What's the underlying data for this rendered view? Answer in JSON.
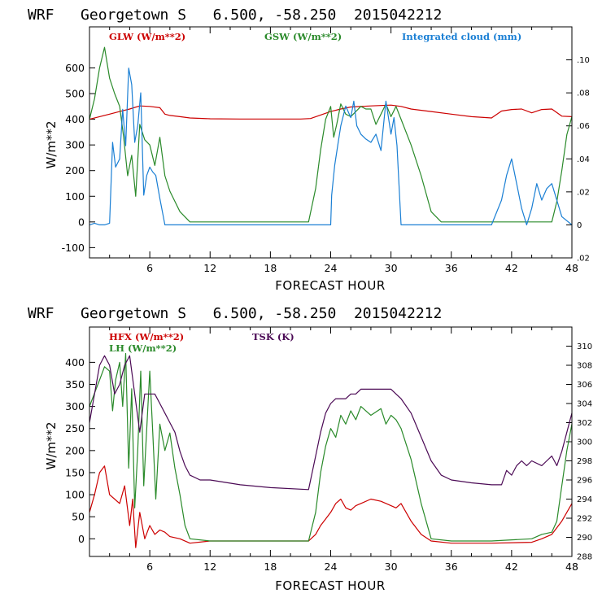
{
  "chart_data": [
    {
      "type": "line",
      "title": "WRF   Georgetown S   6.500, -58.250  2015042212",
      "xlabel": "FORECAST HOUR",
      "ylabel": "W/m**2",
      "xlim": [
        0,
        48
      ],
      "ylim": [
        -140,
        760
      ],
      "y2lim": [
        -0.02,
        0.12
      ],
      "xticks": [
        6,
        12,
        18,
        24,
        30,
        36,
        42,
        48
      ],
      "xtick_labels": [
        "6",
        "12",
        "18",
        "24",
        "30",
        "36",
        "42",
        "48"
      ],
      "yticks": [
        -100,
        0,
        100,
        200,
        300,
        400,
        500,
        600
      ],
      "ytick_labels": [
        "-100",
        "0",
        "100",
        "200",
        "300",
        "400",
        "500",
        "600"
      ],
      "y2ticks": [
        -0.02,
        0,
        0.02,
        0.04,
        0.06,
        0.08,
        0.1
      ],
      "y2tick_labels": [
        ".02",
        "0",
        ".02",
        ".04",
        ".06",
        ".08",
        ".10"
      ],
      "series": [
        {
          "name": "GLW (W/m**2)",
          "axis": "left",
          "color": "#cc0000",
          "x": [
            0,
            1,
            2,
            3,
            4,
            5,
            6,
            7,
            7.5,
            8,
            9,
            10,
            12,
            15,
            18,
            21,
            22,
            24,
            25,
            26,
            28,
            30,
            31,
            32,
            34,
            36,
            38,
            40,
            41,
            42,
            43,
            44,
            45,
            46,
            47,
            48
          ],
          "values": [
            400,
            410,
            420,
            430,
            440,
            452,
            450,
            445,
            420,
            415,
            410,
            405,
            402,
            401,
            401,
            401,
            403,
            430,
            440,
            448,
            452,
            455,
            450,
            440,
            430,
            420,
            410,
            405,
            432,
            438,
            440,
            425,
            438,
            440,
            412,
            410
          ]
        },
        {
          "name": "GSW (W/m**2)",
          "axis": "left",
          "color": "#2a8a2a",
          "x": [
            0,
            0.5,
            1,
            1.5,
            2,
            2.5,
            3,
            3.4,
            3.8,
            4.2,
            4.6,
            5,
            5.5,
            6,
            6.5,
            7,
            7.5,
            8,
            9,
            10,
            21.8,
            22.5,
            23,
            23.5,
            24,
            24.3,
            24.6,
            25,
            25.5,
            26,
            26.5,
            27,
            27.5,
            28,
            28.5,
            29,
            29.5,
            30,
            30.5,
            31,
            32,
            33,
            34,
            35,
            44,
            46,
            46.5,
            47,
            47.5,
            48
          ],
          "values": [
            400,
            480,
            600,
            680,
            560,
            500,
            450,
            330,
            180,
            260,
            100,
            380,
            320,
            300,
            220,
            330,
            180,
            120,
            40,
            0,
            0,
            130,
            280,
            400,
            450,
            330,
            380,
            460,
            420,
            410,
            430,
            450,
            440,
            440,
            380,
            420,
            460,
            410,
            450,
            400,
            300,
            180,
            40,
            0,
            0,
            0,
            80,
            200,
            340,
            410
          ]
        },
        {
          "name": "Integrated cloud (mm)",
          "axis": "right",
          "color": "#1a7fd4",
          "x": [
            0,
            0.5,
            1,
            1.5,
            2,
            2.3,
            2.6,
            3,
            3.3,
            3.6,
            3.9,
            4.2,
            4.5,
            4.8,
            5.1,
            5.4,
            5.7,
            6,
            6.3,
            6.6,
            7,
            7.5,
            8,
            9,
            10,
            12,
            18,
            20,
            24,
            24.1,
            24.4,
            24.7,
            25,
            25.5,
            26,
            26.3,
            26.6,
            27,
            27.5,
            28,
            28.5,
            29,
            29.5,
            30,
            30.3,
            30.6,
            31,
            31.5,
            32,
            36,
            40,
            41,
            41.5,
            42,
            42.5,
            43,
            43.5,
            44,
            44.5,
            45,
            45.5,
            46,
            47,
            48
          ],
          "values": [
            0,
            0.001,
            0,
            0,
            0.001,
            0.05,
            0.035,
            0.04,
            0.07,
            0.048,
            0.095,
            0.085,
            0.05,
            0.06,
            0.08,
            0.018,
            0.03,
            0.035,
            0.032,
            0.03,
            0.016,
            0,
            0,
            0,
            0,
            0,
            0,
            0,
            0,
            0.018,
            0.036,
            0.048,
            0.06,
            0.072,
            0.065,
            0.075,
            0.06,
            0.055,
            0.052,
            0.05,
            0.055,
            0.045,
            0.075,
            0.055,
            0.065,
            0.048,
            0,
            0,
            0,
            0,
            0,
            0.015,
            0.03,
            0.04,
            0.025,
            0.01,
            0,
            0.01,
            0.025,
            0.015,
            0.022,
            0.025,
            0.005,
            0
          ]
        }
      ]
    },
    {
      "type": "line",
      "title": "WRF   Georgetown S   6.500, -58.250  2015042212",
      "xlabel": "FORECAST HOUR",
      "ylabel": "W/m**2",
      "xlim": [
        0,
        48
      ],
      "ylim": [
        -40,
        480
      ],
      "y2lim": [
        288,
        312
      ],
      "xticks": [
        6,
        12,
        18,
        24,
        30,
        36,
        42,
        48
      ],
      "xtick_labels": [
        "6",
        "12",
        "18",
        "24",
        "30",
        "36",
        "42",
        "48"
      ],
      "yticks": [
        0,
        50,
        100,
        150,
        200,
        250,
        300,
        350,
        400
      ],
      "ytick_labels": [
        "0",
        "50",
        "100",
        "150",
        "200",
        "250",
        "300",
        "350",
        "400"
      ],
      "y2ticks": [
        288,
        290,
        292,
        294,
        296,
        298,
        300,
        302,
        304,
        306,
        308,
        310
      ],
      "y2tick_labels": [
        "288",
        "290",
        "292",
        "294",
        "296",
        "298",
        "300",
        "302",
        "304",
        "306",
        "308",
        "310"
      ],
      "series": [
        {
          "name": "HFX (W/m**2)",
          "axis": "left",
          "color": "#cc0000",
          "x": [
            0,
            0.5,
            1,
            1.5,
            2,
            2.5,
            3,
            3.5,
            4,
            4.3,
            4.6,
            5,
            5.5,
            6,
            6.5,
            7,
            7.5,
            8,
            9,
            10,
            12,
            18,
            21.8,
            22.5,
            23,
            24,
            24.5,
            25,
            25.5,
            26,
            26.5,
            27,
            28,
            29,
            30,
            30.5,
            31,
            32,
            33,
            34,
            36,
            40,
            44,
            45,
            46,
            47,
            48
          ],
          "values": [
            60,
            100,
            150,
            165,
            100,
            90,
            80,
            120,
            30,
            90,
            -20,
            60,
            0,
            30,
            10,
            20,
            15,
            5,
            0,
            -10,
            -5,
            -5,
            -5,
            10,
            30,
            60,
            80,
            90,
            70,
            65,
            75,
            80,
            90,
            85,
            75,
            70,
            80,
            40,
            10,
            -5,
            -10,
            -10,
            -8,
            0,
            10,
            40,
            80
          ]
        },
        {
          "name": "LH  (W/m**2)",
          "axis": "left",
          "color": "#2a8a2a",
          "x": [
            0,
            0.5,
            1,
            1.5,
            2,
            2.3,
            2.6,
            3,
            3.3,
            3.6,
            3.9,
            4.2,
            4.5,
            4.8,
            5.1,
            5.4,
            5.7,
            6,
            6.3,
            6.6,
            7,
            7.5,
            8,
            8.5,
            9,
            9.5,
            10,
            12,
            18,
            21.8,
            22.5,
            23,
            23.5,
            24,
            24.5,
            25,
            25.5,
            26,
            26.5,
            27,
            28,
            29,
            29.5,
            30,
            30.5,
            31,
            32,
            33,
            34,
            36,
            40,
            44,
            45,
            46,
            46.5,
            47,
            47.5,
            48
          ],
          "values": [
            300,
            330,
            360,
            390,
            380,
            290,
            360,
            400,
            300,
            420,
            160,
            340,
            70,
            200,
            380,
            120,
            250,
            380,
            240,
            90,
            260,
            200,
            240,
            160,
            100,
            30,
            0,
            -5,
            -5,
            -5,
            60,
            150,
            210,
            250,
            230,
            280,
            260,
            290,
            270,
            300,
            280,
            295,
            260,
            280,
            270,
            250,
            180,
            80,
            0,
            -5,
            -5,
            0,
            10,
            15,
            40,
            120,
            200,
            260
          ]
        },
        {
          "name": "TSK (K)",
          "axis": "right",
          "color": "#4b0a55",
          "x": [
            0,
            0.5,
            1,
            1.5,
            2,
            2.5,
            3,
            3.5,
            4,
            4.5,
            5,
            5.5,
            6,
            6.5,
            7,
            7.5,
            8,
            8.5,
            9,
            9.5,
            10,
            11,
            12,
            15,
            18,
            21.8,
            22,
            22.5,
            23,
            23.5,
            24,
            24.5,
            25,
            25.5,
            26,
            26.5,
            27,
            28,
            29,
            30,
            30.5,
            31,
            32,
            33,
            34,
            35,
            36,
            38,
            40,
            41,
            41.5,
            42,
            42.5,
            43,
            43.5,
            44,
            45,
            45.5,
            46,
            46.5,
            47,
            47.5,
            48
          ],
          "values": [
            302,
            305,
            308,
            309,
            308,
            305,
            306,
            308,
            309,
            305,
            301,
            305,
            305,
            305,
            304,
            303,
            302,
            301,
            299,
            297.5,
            296.5,
            296,
            296,
            295.5,
            295.2,
            295,
            296,
            298.5,
            301,
            303,
            304,
            304.5,
            304.5,
            304.5,
            305,
            305,
            305.5,
            305.5,
            305.5,
            305.5,
            305,
            304.5,
            303,
            300.5,
            298,
            296.5,
            296,
            295.7,
            295.5,
            295.5,
            297,
            296.5,
            297.5,
            298,
            297.5,
            298,
            297.5,
            298,
            298.5,
            297.5,
            299,
            301,
            303
          ]
        }
      ]
    }
  ]
}
